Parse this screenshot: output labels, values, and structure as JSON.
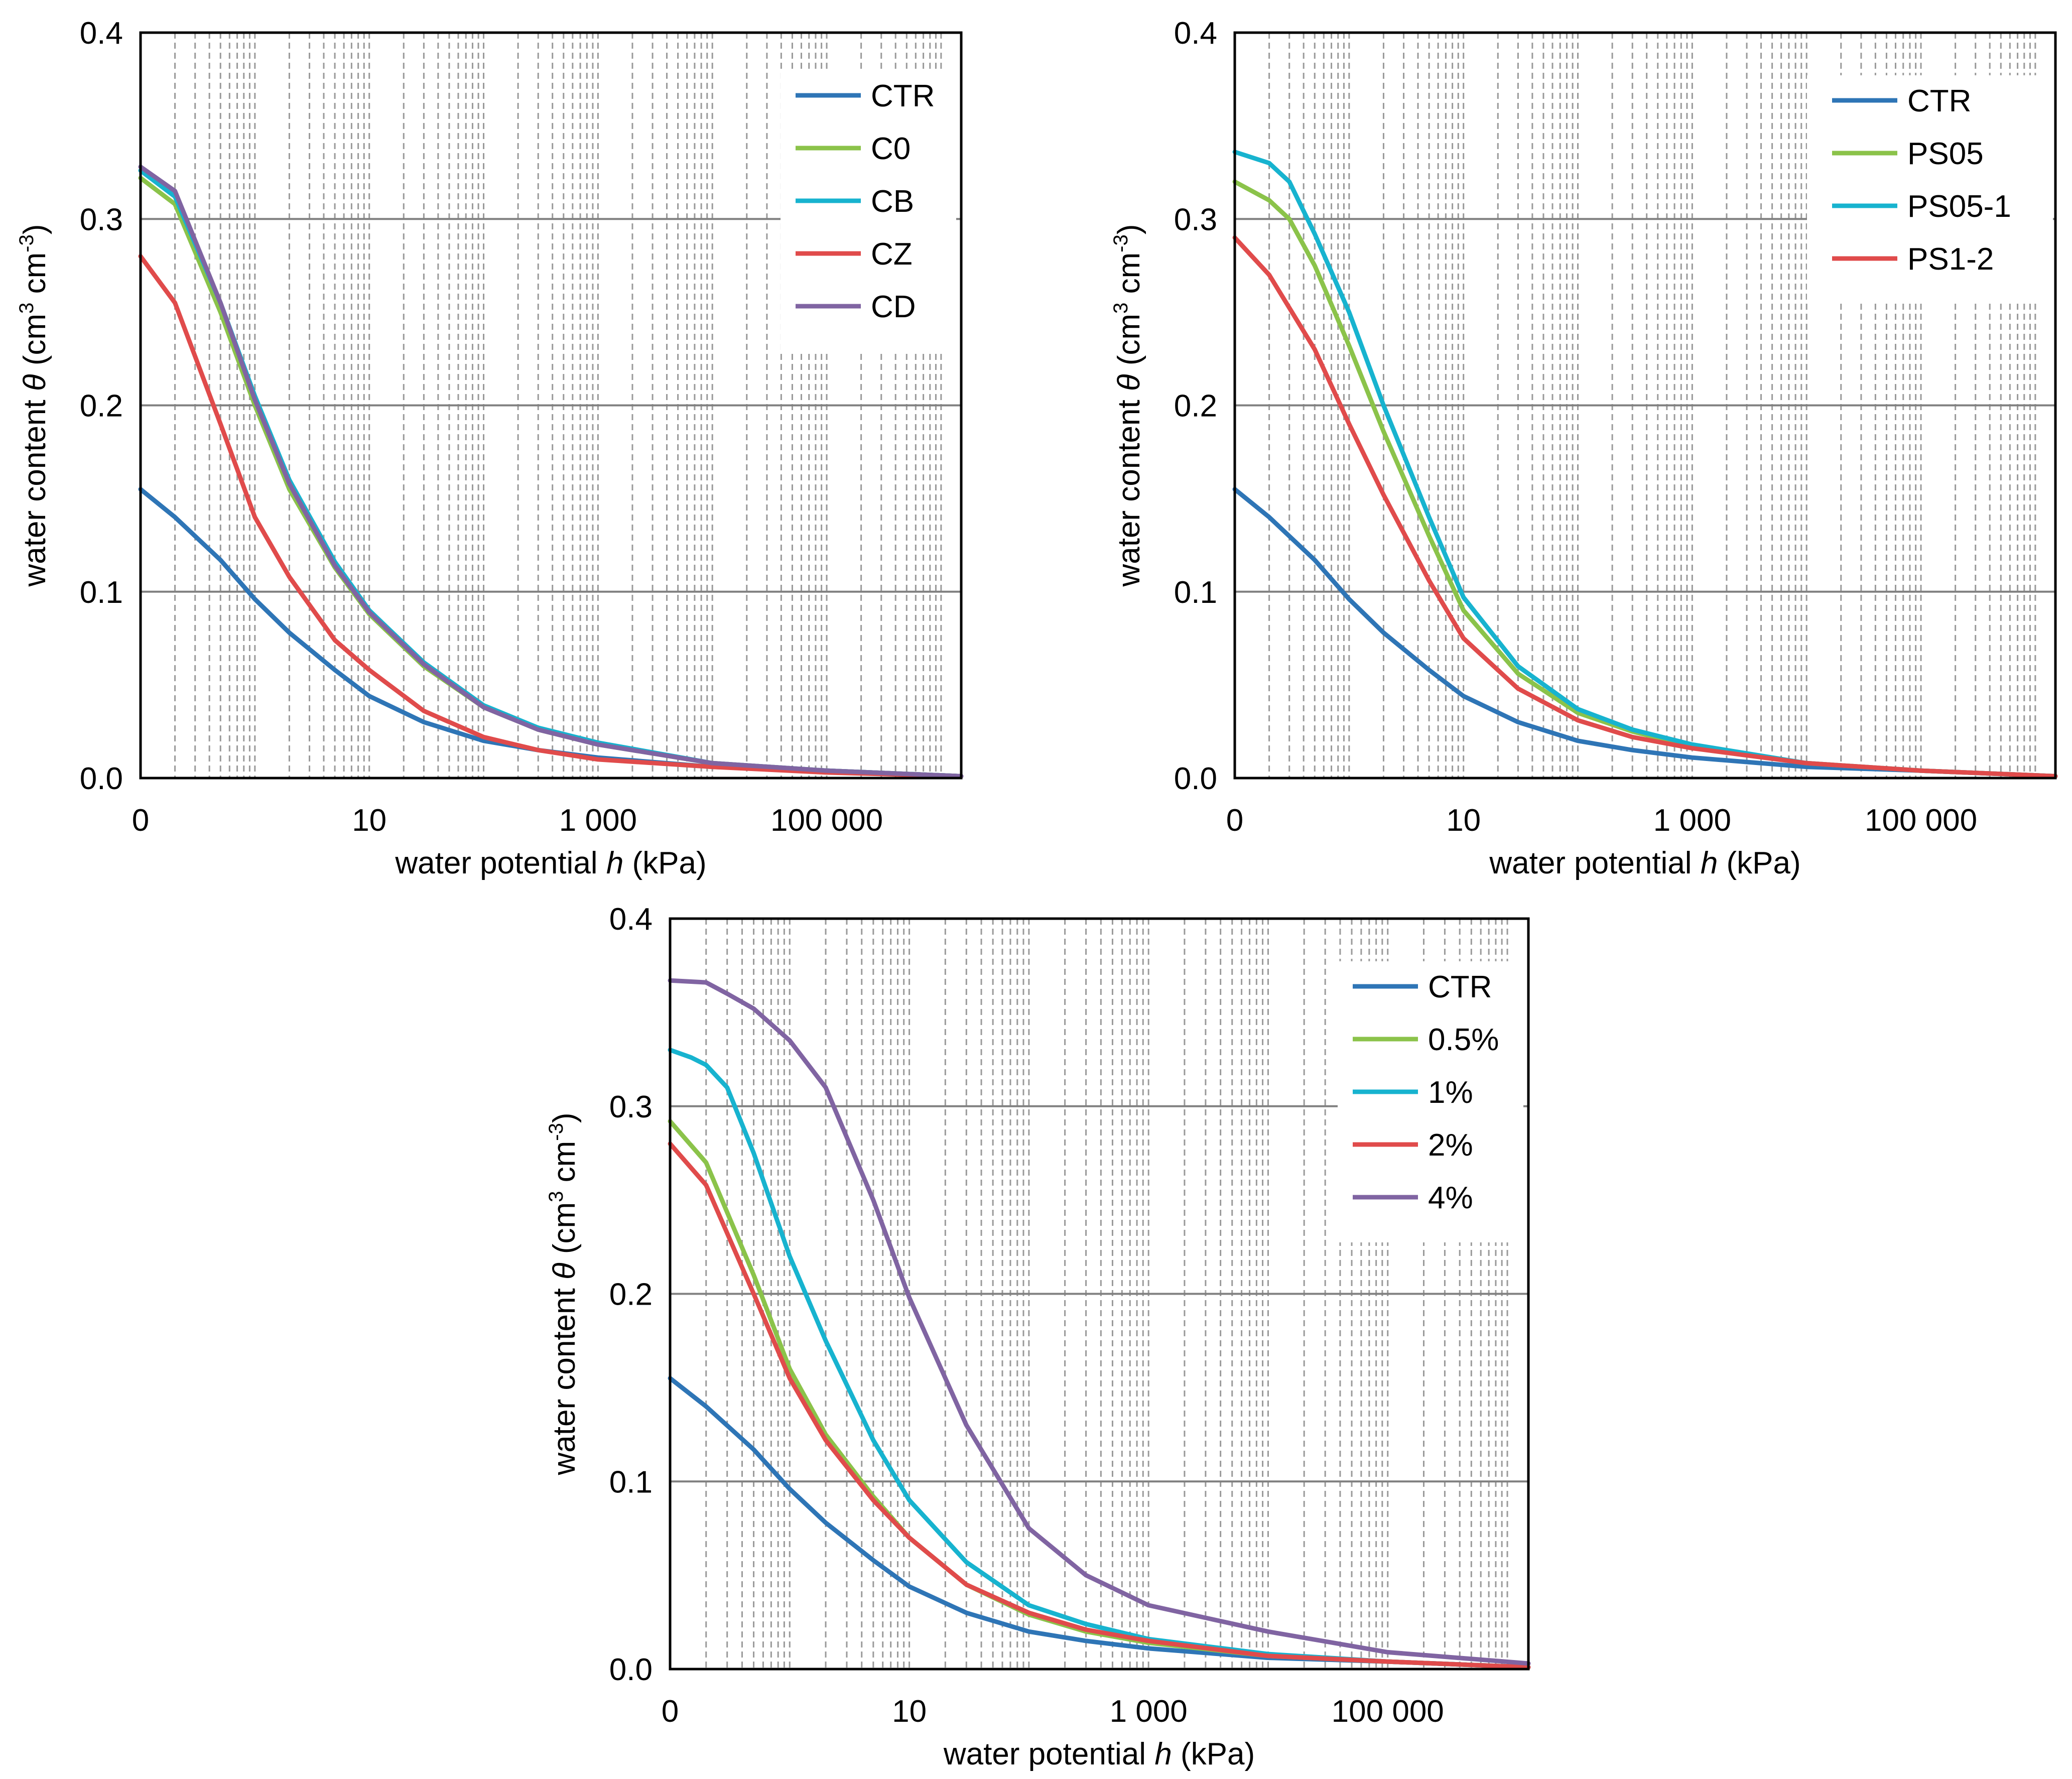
{
  "chart_data": [
    {
      "type": "line",
      "x_scale": "log",
      "xlabel_prefix": "water potential ",
      "xlabel_var": "h",
      "xlabel_suffix": " (kPa)",
      "ylabel_prefix": "water content ",
      "ylabel_var": "θ",
      "ylabel_unit1": " (cm",
      "ylabel_sup1": "3",
      "ylabel_unit2": " cm",
      "ylabel_sup2": "-3",
      "ylabel_close": ")",
      "xlim": [
        0.1,
        1500000
      ],
      "ylim": [
        0,
        0.4
      ],
      "x_ticks": [
        {
          "value": 0.1,
          "label": "0"
        },
        {
          "value": 10,
          "label": "10"
        },
        {
          "value": 1000,
          "label": "1 000"
        },
        {
          "value": 100000,
          "label": "100 000"
        }
      ],
      "y_ticks": [
        {
          "value": 0,
          "label": "0.0"
        },
        {
          "value": 0.1,
          "label": "0.1"
        },
        {
          "value": 0.2,
          "label": "0.2"
        },
        {
          "value": 0.3,
          "label": "0.3"
        },
        {
          "value": 0.4,
          "label": "0.4"
        }
      ],
      "series": [
        {
          "name": "CTR",
          "color": "#2E75B6",
          "x": [
            0.1,
            0.2,
            0.5,
            1,
            2,
            5,
            10,
            30,
            100,
            300,
            1000,
            10000,
            100000,
            1500000
          ],
          "values": [
            0.155,
            0.14,
            0.117,
            0.096,
            0.078,
            0.058,
            0.044,
            0.03,
            0.02,
            0.015,
            0.011,
            0.006,
            0.004,
            0.001
          ]
        },
        {
          "name": "C0",
          "color": "#8BC34A",
          "x": [
            0.1,
            0.2,
            0.5,
            1,
            2,
            5,
            10,
            30,
            100,
            300,
            1000,
            10000,
            100000,
            1500000
          ],
          "values": [
            0.322,
            0.308,
            0.25,
            0.2,
            0.155,
            0.113,
            0.088,
            0.06,
            0.038,
            0.026,
            0.018,
            0.008,
            0.004,
            0.001
          ]
        },
        {
          "name": "CB",
          "color": "#17B3CF",
          "x": [
            0.1,
            0.2,
            0.5,
            1,
            2,
            5,
            10,
            30,
            100,
            300,
            1000,
            10000,
            100000,
            1500000
          ],
          "values": [
            0.326,
            0.312,
            0.255,
            0.205,
            0.16,
            0.116,
            0.09,
            0.062,
            0.039,
            0.027,
            0.019,
            0.008,
            0.004,
            0.001
          ]
        },
        {
          "name": "CZ",
          "color": "#E04B4B",
          "x": [
            0.1,
            0.2,
            0.5,
            1,
            2,
            5,
            10,
            30,
            100,
            300,
            1000,
            10000,
            100000,
            1500000
          ],
          "values": [
            0.28,
            0.255,
            0.19,
            0.14,
            0.108,
            0.074,
            0.058,
            0.036,
            0.022,
            0.015,
            0.01,
            0.006,
            0.003,
            0.001
          ]
        },
        {
          "name": "CD",
          "color": "#8064A2",
          "x": [
            0.1,
            0.2,
            0.5,
            1,
            2,
            5,
            10,
            30,
            100,
            300,
            1000,
            10000,
            100000,
            1500000
          ],
          "values": [
            0.328,
            0.315,
            0.255,
            0.203,
            0.158,
            0.114,
            0.089,
            0.061,
            0.038,
            0.026,
            0.018,
            0.008,
            0.004,
            0.001
          ]
        }
      ]
    },
    {
      "type": "line",
      "x_scale": "log",
      "xlabel_prefix": "water potential ",
      "xlabel_var": "h",
      "xlabel_suffix": " (kPa)",
      "ylabel_prefix": "water content ",
      "ylabel_var": "θ",
      "ylabel_unit1": " (cm",
      "ylabel_sup1": "3",
      "ylabel_unit2": " cm",
      "ylabel_sup2": "-3",
      "ylabel_close": ")",
      "xlim": [
        0.1,
        1500000
      ],
      "ylim": [
        0,
        0.4
      ],
      "x_ticks": [
        {
          "value": 0.1,
          "label": "0"
        },
        {
          "value": 10,
          "label": "10"
        },
        {
          "value": 1000,
          "label": "1 000"
        },
        {
          "value": 100000,
          "label": "100 000"
        }
      ],
      "y_ticks": [
        {
          "value": 0,
          "label": "0.0"
        },
        {
          "value": 0.1,
          "label": "0.1"
        },
        {
          "value": 0.2,
          "label": "0.2"
        },
        {
          "value": 0.3,
          "label": "0.3"
        },
        {
          "value": 0.4,
          "label": "0.4"
        }
      ],
      "series": [
        {
          "name": "CTR",
          "color": "#2E75B6",
          "x": [
            0.1,
            0.2,
            0.5,
            1,
            2,
            5,
            10,
            30,
            100,
            300,
            1000,
            10000,
            100000,
            1500000
          ],
          "values": [
            0.155,
            0.14,
            0.117,
            0.096,
            0.078,
            0.058,
            0.044,
            0.03,
            0.02,
            0.015,
            0.011,
            0.006,
            0.004,
            0.001
          ]
        },
        {
          "name": "PS05",
          "color": "#8BC34A",
          "x": [
            0.1,
            0.2,
            0.3,
            0.5,
            1,
            2,
            5,
            10,
            30,
            100,
            300,
            1000,
            10000,
            100000,
            1500000
          ],
          "values": [
            0.32,
            0.31,
            0.3,
            0.275,
            0.232,
            0.186,
            0.13,
            0.09,
            0.056,
            0.035,
            0.025,
            0.017,
            0.008,
            0.004,
            0.001
          ]
        },
        {
          "name": "PS05-1",
          "color": "#17B3CF",
          "x": [
            0.1,
            0.2,
            0.3,
            0.5,
            1,
            2,
            5,
            10,
            30,
            100,
            300,
            1000,
            10000,
            100000,
            1500000
          ],
          "values": [
            0.336,
            0.33,
            0.32,
            0.292,
            0.25,
            0.2,
            0.14,
            0.097,
            0.06,
            0.037,
            0.026,
            0.018,
            0.008,
            0.004,
            0.001
          ]
        },
        {
          "name": "PS1-2",
          "color": "#E04B4B",
          "x": [
            0.1,
            0.2,
            0.5,
            1,
            2,
            5,
            10,
            30,
            100,
            300,
            1000,
            10000,
            100000,
            1500000
          ],
          "values": [
            0.29,
            0.27,
            0.23,
            0.19,
            0.152,
            0.106,
            0.075,
            0.048,
            0.031,
            0.022,
            0.016,
            0.008,
            0.004,
            0.001
          ]
        }
      ]
    },
    {
      "type": "line",
      "x_scale": "log",
      "xlabel_prefix": "water potential ",
      "xlabel_var": "h",
      "xlabel_suffix": " (kPa)",
      "ylabel_prefix": "water content ",
      "ylabel_var": "θ",
      "ylabel_unit1": " (cm",
      "ylabel_sup1": "3",
      "ylabel_unit2": " cm",
      "ylabel_sup2": "-3",
      "ylabel_close": ")",
      "xlim": [
        0.1,
        1500000
      ],
      "ylim": [
        0,
        0.4
      ],
      "x_ticks": [
        {
          "value": 0.1,
          "label": "0"
        },
        {
          "value": 10,
          "label": "10"
        },
        {
          "value": 1000,
          "label": "1 000"
        },
        {
          "value": 100000,
          "label": "100 000"
        }
      ],
      "y_ticks": [
        {
          "value": 0,
          "label": "0.0"
        },
        {
          "value": 0.1,
          "label": "0.1"
        },
        {
          "value": 0.2,
          "label": "0.2"
        },
        {
          "value": 0.3,
          "label": "0.3"
        },
        {
          "value": 0.4,
          "label": "0.4"
        }
      ],
      "series": [
        {
          "name": "CTR",
          "color": "#2E75B6",
          "x": [
            0.1,
            0.2,
            0.5,
            1,
            2,
            5,
            10,
            30,
            100,
            300,
            1000,
            10000,
            100000,
            1500000
          ],
          "values": [
            0.155,
            0.14,
            0.117,
            0.096,
            0.078,
            0.058,
            0.044,
            0.03,
            0.02,
            0.015,
            0.011,
            0.006,
            0.004,
            0.001
          ]
        },
        {
          "name": "0.5%",
          "color": "#8BC34A",
          "x": [
            0.1,
            0.2,
            0.5,
            1,
            2,
            5,
            10,
            30,
            100,
            300,
            1000,
            10000,
            100000,
            1500000
          ],
          "values": [
            0.292,
            0.27,
            0.21,
            0.16,
            0.125,
            0.092,
            0.07,
            0.045,
            0.029,
            0.02,
            0.014,
            0.007,
            0.004,
            0.001
          ]
        },
        {
          "name": "1%",
          "color": "#17B3CF",
          "x": [
            0.1,
            0.15,
            0.2,
            0.3,
            0.5,
            1,
            2,
            5,
            10,
            30,
            100,
            300,
            1000,
            10000,
            100000,
            1500000
          ],
          "values": [
            0.33,
            0.326,
            0.322,
            0.31,
            0.275,
            0.22,
            0.175,
            0.122,
            0.09,
            0.057,
            0.034,
            0.024,
            0.016,
            0.008,
            0.004,
            0.001
          ]
        },
        {
          "name": "2%",
          "color": "#E04B4B",
          "x": [
            0.1,
            0.2,
            0.5,
            1,
            2,
            5,
            10,
            30,
            100,
            300,
            1000,
            10000,
            100000,
            1500000
          ],
          "values": [
            0.28,
            0.258,
            0.2,
            0.155,
            0.122,
            0.09,
            0.07,
            0.045,
            0.03,
            0.021,
            0.015,
            0.007,
            0.004,
            0.001
          ]
        },
        {
          "name": "4%",
          "color": "#8064A2",
          "x": [
            0.1,
            0.2,
            0.3,
            0.5,
            1,
            2,
            5,
            10,
            30,
            100,
            300,
            1000,
            10000,
            100000,
            1500000
          ],
          "values": [
            0.367,
            0.366,
            0.36,
            0.352,
            0.335,
            0.31,
            0.25,
            0.198,
            0.13,
            0.075,
            0.05,
            0.034,
            0.02,
            0.009,
            0.003
          ]
        }
      ]
    }
  ]
}
